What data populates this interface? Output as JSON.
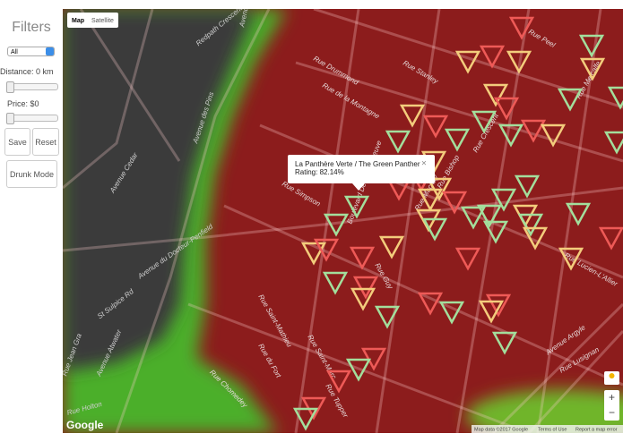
{
  "sidebar": {
    "title": "Filters",
    "select": "All",
    "distance_label": "Distance: 0 km",
    "price_label": "Price: $0",
    "save": "Save",
    "reset": "Reset",
    "drunk_mode": "Drunk Mode"
  },
  "map": {
    "type_controls": [
      "Map",
      "Satellite"
    ],
    "popup": {
      "title": "La Panthère Verte / The Green Panther",
      "rating": "Rating: 82.14%",
      "close": "×"
    },
    "street_labels": [
      "Redpath Crescent",
      "Avenue des Pins",
      "Avenue du Docteur-Penfield",
      "Avenue Cedar",
      "Avenue du Docteur-Penfield",
      "Rue Drummond",
      "Rue de la Montagne",
      "Rue Stanley",
      "Rue Peel",
      "Rue Metcalfe",
      "Rue Simpson",
      "Boulevard De Maisonneuve",
      "Rue Mackay",
      "Rue Guy",
      "Rue Lucien-L'Allier",
      "St Sulpice Rd",
      "Avenue Atwater",
      "Rue Saint-Mathieu",
      "Rue du Fort",
      "Rue Chomedey",
      "Rue Saint-Marc",
      "Rue Tupper",
      "Avenue Argyle",
      "Rue Lusignan",
      "Rue Holton",
      "Rue Jean Gra",
      "Rue Bishop",
      "Rue Crescent"
    ],
    "footer": {
      "logo": "Google",
      "map_data": "Map data ©2017 Google",
      "terms": "Terms of Use",
      "report": "Report a map error"
    },
    "zoom": [
      "+",
      "−"
    ]
  }
}
